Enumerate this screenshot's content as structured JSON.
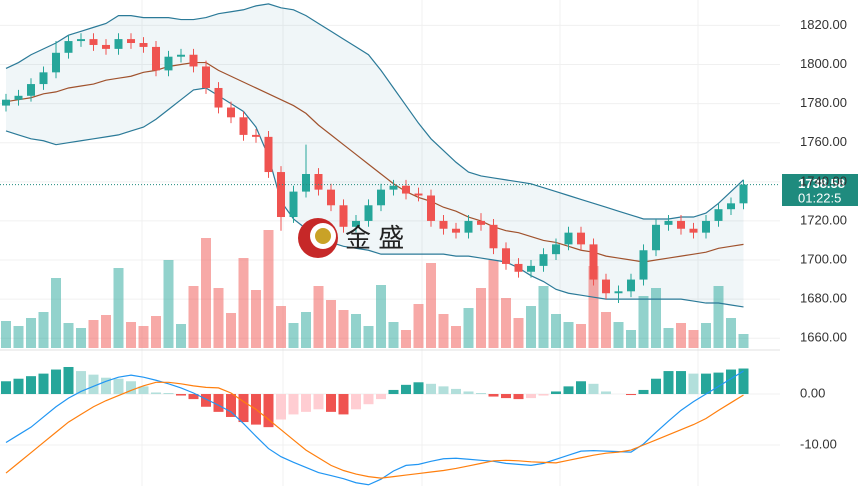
{
  "chart_data": [
    {
      "type": "candlestick",
      "open": [
        1779,
        1782,
        1784,
        1790,
        1796,
        1806,
        1812,
        1813,
        1810,
        1808,
        1813,
        1811,
        1809,
        1797,
        1804,
        1805,
        1799,
        1788,
        1778,
        1773,
        1764,
        1763,
        1745,
        1722,
        1735,
        1744,
        1736,
        1728,
        1717,
        1720,
        1728,
        1736,
        1738,
        1734,
        1733,
        1720,
        1716,
        1714,
        1720,
        1718,
        1706,
        1698,
        1694,
        1697,
        1703,
        1708,
        1714,
        1708,
        1690,
        1683,
        1684,
        1690,
        1705,
        1718,
        1720,
        1716,
        1714,
        1720,
        1726,
        1729
      ],
      "high": [
        1785,
        1787,
        1793,
        1799,
        1812,
        1815,
        1816,
        1816,
        1813,
        1816,
        1816,
        1814,
        1812,
        1807,
        1808,
        1808,
        1802,
        1791,
        1781,
        1776,
        1767,
        1766,
        1748,
        1738,
        1759,
        1747,
        1739,
        1731,
        1723,
        1731,
        1739,
        1741,
        1741,
        1737,
        1736,
        1723,
        1719,
        1723,
        1724,
        1721,
        1709,
        1701,
        1700,
        1706,
        1711,
        1717,
        1717,
        1711,
        1693,
        1687,
        1693,
        1708,
        1721,
        1723,
        1723,
        1719,
        1723,
        1729,
        1732,
        1741
      ],
      "low": [
        1776,
        1779,
        1781,
        1787,
        1793,
        1803,
        1809,
        1807,
        1805,
        1805,
        1808,
        1806,
        1794,
        1794,
        1801,
        1796,
        1785,
        1775,
        1770,
        1761,
        1760,
        1742,
        1715,
        1719,
        1732,
        1733,
        1725,
        1714,
        1714,
        1717,
        1725,
        1733,
        1731,
        1730,
        1717,
        1713,
        1711,
        1711,
        1715,
        1703,
        1695,
        1691,
        1691,
        1694,
        1700,
        1705,
        1705,
        1687,
        1680,
        1678,
        1681,
        1687,
        1702,
        1715,
        1713,
        1711,
        1711,
        1717,
        1723,
        1726
      ],
      "close": [
        1782,
        1784,
        1790,
        1796,
        1806,
        1812,
        1813,
        1810,
        1808,
        1813,
        1811,
        1809,
        1797,
        1804,
        1805,
        1799,
        1788,
        1778,
        1773,
        1764,
        1763,
        1745,
        1722,
        1735,
        1744,
        1736,
        1728,
        1717,
        1720,
        1728,
        1736,
        1738,
        1734,
        1733,
        1720,
        1716,
        1714,
        1720,
        1718,
        1706,
        1698,
        1694,
        1697,
        1703,
        1708,
        1714,
        1708,
        1690,
        1683,
        1684,
        1690,
        1705,
        1718,
        1720,
        1716,
        1714,
        1720,
        1726,
        1729,
        1738.58
      ],
      "volume": [
        27,
        22,
        30,
        36,
        70,
        25,
        20,
        28,
        33,
        80,
        26,
        22,
        32,
        88,
        24,
        62,
        110,
        60,
        35,
        90,
        58,
        118,
        42,
        25,
        36,
        62,
        48,
        38,
        34,
        22,
        63,
        26,
        18,
        44,
        85,
        34,
        22,
        40,
        60,
        88,
        50,
        30,
        42,
        62,
        34,
        26,
        24,
        82,
        36,
        26,
        18,
        52,
        60,
        20,
        25,
        18,
        25,
        62,
        30,
        14
      ],
      "upper_band": {
        "color": "#2b7a98",
        "values": [
          1798,
          1801,
          1805,
          1808,
          1811,
          1815,
          1817,
          1819,
          1821,
          1825,
          1825,
          1824,
          1824,
          1824,
          1823,
          1823,
          1824,
          1826,
          1827,
          1828,
          1830,
          1831,
          1829,
          1828,
          1825,
          1821,
          1817,
          1813,
          1809,
          1805,
          1797,
          1788,
          1779,
          1770,
          1762,
          1756,
          1750,
          1745,
          1743,
          1742,
          1741,
          1740,
          1739,
          1737,
          1735,
          1733,
          1731,
          1729,
          1727,
          1725,
          1723,
          1721,
          1721,
          1721,
          1722,
          1722,
          1724,
          1729,
          1735,
          1741
        ]
      },
      "middle_band": {
        "color": "#a0522d",
        "values": [
          1781,
          1782,
          1783,
          1785,
          1786,
          1788,
          1789,
          1790,
          1792,
          1793,
          1794,
          1796,
          1797,
          1799,
          1800,
          1801,
          1801,
          1797,
          1794,
          1791,
          1788,
          1785,
          1782,
          1779,
          1775,
          1769,
          1764,
          1759,
          1754,
          1749,
          1744,
          1739,
          1735,
          1732,
          1730,
          1727,
          1725,
          1722,
          1720,
          1717,
          1715,
          1714,
          1712,
          1710,
          1709,
          1707,
          1705,
          1704,
          1702,
          1701,
          1700,
          1699,
          1700,
          1701,
          1702,
          1703,
          1704,
          1706,
          1707,
          1708
        ]
      },
      "lower_band": {
        "color": "#2b7a98",
        "values": [
          1766,
          1764,
          1762,
          1761,
          1759,
          1760,
          1761,
          1762,
          1763,
          1764,
          1766,
          1768,
          1772,
          1777,
          1782,
          1787,
          1788,
          1784,
          1780,
          1776,
          1768,
          1753,
          1730,
          1721,
          1716,
          1712,
          1709,
          1707,
          1706,
          1705,
          1703,
          1703,
          1703,
          1703,
          1703,
          1703,
          1702,
          1702,
          1701,
          1700,
          1699,
          1696,
          1692,
          1689,
          1685,
          1683,
          1682,
          1681,
          1680,
          1680,
          1680,
          1680,
          1680,
          1680,
          1680,
          1679,
          1678,
          1678,
          1677,
          1676
        ]
      },
      "up_color": "#26a69a",
      "down_color": "#ef5350",
      "ylim": [
        1655,
        1833
      ],
      "yticks": [
        {
          "value": 1820,
          "label": "1820.00"
        },
        {
          "value": 1800,
          "label": "1800.00"
        },
        {
          "value": 1780,
          "label": "1780.00"
        },
        {
          "value": 1760,
          "label": "1760.00"
        },
        {
          "value": 1740,
          "label": "1740.00"
        },
        {
          "value": 1720,
          "label": "1720.00"
        },
        {
          "value": 1700,
          "label": "1700.00"
        },
        {
          "value": 1680,
          "label": "1680.00"
        },
        {
          "value": 1660,
          "label": "1660.00"
        }
      ],
      "countdown": "01:22:5",
      "watermark": "金 盛"
    },
    {
      "type": "macd",
      "histogram": [
        2.5,
        3,
        3.5,
        4,
        4.8,
        5.3,
        4.5,
        3.8,
        3.2,
        3,
        2.5,
        1.5,
        0.3,
        0.2,
        -0.3,
        -1,
        -2.5,
        -3.5,
        -4.5,
        -5.5,
        -6,
        -6.5,
        -5,
        -4,
        -3.5,
        -3,
        -3.5,
        -4,
        -3,
        -2,
        -1,
        0.8,
        1.8,
        2.3,
        2,
        1.5,
        1,
        0.5,
        0.2,
        -0.5,
        -0.8,
        -1,
        -0.8,
        -0.3,
        0.5,
        1.5,
        2.5,
        2,
        0.5,
        0,
        -0.2,
        0.8,
        3,
        4.5,
        4.5,
        4,
        4,
        4.2,
        4.8,
        5
      ],
      "macd": {
        "color": "#2196f3",
        "values": [
          -9.5,
          -8,
          -6.5,
          -4.5,
          -2.5,
          -0.8,
          0.5,
          1.5,
          2.5,
          3.3,
          3.7,
          3.3,
          2.7,
          2,
          1.2,
          0.2,
          -1,
          -2.2,
          -3.5,
          -5.8,
          -8.3,
          -10.7,
          -12.3,
          -13.4,
          -14.4,
          -15.4,
          -16,
          -16.6,
          -17.4,
          -17.8,
          -16.7,
          -15.1,
          -14,
          -13.8,
          -13.2,
          -12.7,
          -12.6,
          -12.8,
          -13,
          -13.2,
          -13.6,
          -13.8,
          -14,
          -13.6,
          -12.8,
          -12,
          -11.2,
          -11.1,
          -11.2,
          -11.3,
          -11.4,
          -9.8,
          -7.5,
          -5.3,
          -3.2,
          -1.5,
          0,
          1.5,
          3,
          4.5
        ]
      },
      "signal": {
        "color": "#ff7f0e",
        "values": [
          -15.5,
          -13.5,
          -11.5,
          -9.5,
          -7.5,
          -5.5,
          -4,
          -2.5,
          -1.3,
          -0.3,
          0.7,
          1.6,
          2.3,
          2.3,
          2,
          1.6,
          1.3,
          1.2,
          0.2,
          -1.5,
          -3,
          -5,
          -7,
          -9,
          -11,
          -12.5,
          -14,
          -15,
          -15.7,
          -16.2,
          -16.5,
          -16.2,
          -15.9,
          -15.6,
          -15.3,
          -15,
          -14.6,
          -14.1,
          -13.6,
          -13.1,
          -13,
          -13.1,
          -13.3,
          -13.4,
          -13.5,
          -13,
          -12.5,
          -12,
          -11.6,
          -11.4,
          -11,
          -10,
          -9,
          -8,
          -7,
          -6,
          -4.8,
          -3.2,
          -1.7,
          -0.2
        ]
      },
      "colors": [
        "#26a69a",
        "#b2dfdb",
        "#ef5350",
        "#ffcdd2"
      ],
      "ylim": [
        -18.04,
        8.24
      ],
      "yticks": [
        {
          "value": 0,
          "label": "0.00"
        },
        {
          "value": -10,
          "label": "-10.00"
        }
      ]
    }
  ]
}
